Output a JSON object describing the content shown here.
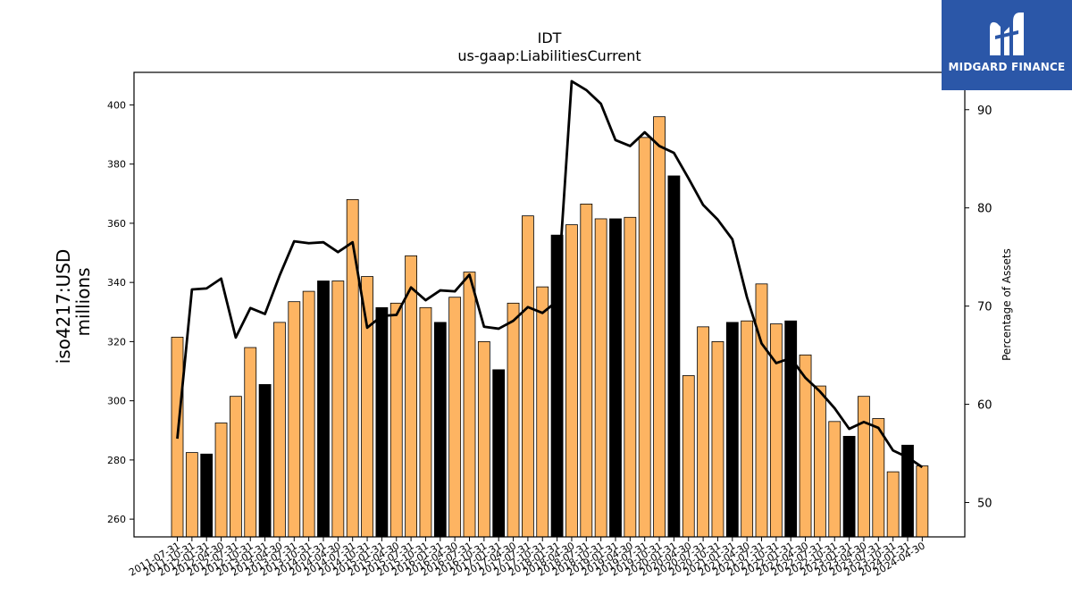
{
  "chart_data": {
    "type": "bar",
    "title": "IDT",
    "subtitle": "us-gaap:LiabilitiesCurrent",
    "ylabel_line1": "iso4217:USD",
    "ylabel_line2": "millions",
    "y2label": "Percentage of Assets",
    "ylim": [
      254,
      411
    ],
    "y2lim": [
      46.5,
      93.8
    ],
    "yticks": [
      260,
      280,
      300,
      320,
      340,
      360,
      380,
      400
    ],
    "y2ticks": [
      50,
      60,
      70,
      80,
      90
    ],
    "colors": {
      "bar": "#fdb462",
      "bar_highlight": "#000000",
      "line": "#000000"
    },
    "categories": [
      "2011-07-31",
      "2011-10-31",
      "2012-01-31",
      "2012-04-30",
      "2012-07-31",
      "2012-10-31",
      "2013-01-31",
      "2013-04-30",
      "2013-07-31",
      "2013-10-31",
      "2014-01-31",
      "2014-04-30",
      "2014-07-31",
      "2014-10-31",
      "2015-01-31",
      "2015-04-30",
      "2015-07-31",
      "2015-10-31",
      "2016-01-31",
      "2016-04-30",
      "2016-07-31",
      "2016-10-31",
      "2017-01-31",
      "2017-04-30",
      "2017-07-31",
      "2017-10-31",
      "2018-01-31",
      "2018-04-30",
      "2018-07-31",
      "2018-10-31",
      "2019-01-31",
      "2019-04-30",
      "2019-07-31",
      "2019-10-31",
      "2020-01-31",
      "2020-04-30",
      "2020-07-31",
      "2020-10-31",
      "2021-01-31",
      "2021-04-30",
      "2021-07-31",
      "2021-10-31",
      "2022-01-31",
      "2022-04-30",
      "2022-07-31",
      "2022-10-31",
      "2023-01-31",
      "2023-04-30",
      "2023-07-31",
      "2023-10-31",
      "2024-01-31",
      "2024-04-30"
    ],
    "values": [
      321.5,
      282.5,
      282,
      292.5,
      301.5,
      318,
      305.5,
      326.5,
      333.5,
      337,
      340.5,
      340.5,
      368,
      342,
      331.5,
      333,
      349,
      331.5,
      326.5,
      335,
      343.5,
      320,
      310.5,
      333,
      362.5,
      338.5,
      356,
      359.5,
      366.5,
      361.5,
      361.5,
      362,
      389,
      396,
      376,
      308.5,
      325,
      320,
      326.5,
      327,
      339.5,
      326,
      327,
      315.5,
      305,
      293,
      288,
      301.5,
      294,
      276,
      285,
      278
    ],
    "highlight": [
      false,
      false,
      true,
      false,
      false,
      false,
      true,
      false,
      false,
      false,
      true,
      false,
      false,
      false,
      true,
      false,
      false,
      false,
      true,
      false,
      false,
      false,
      true,
      false,
      false,
      false,
      true,
      false,
      false,
      false,
      true,
      false,
      false,
      false,
      true,
      false,
      false,
      false,
      true,
      false,
      false,
      false,
      true,
      false,
      false,
      false,
      true,
      false,
      false,
      false,
      true,
      false
    ],
    "percent_of_assets": [
      56.5,
      71.7,
      71.8,
      72.8,
      66.8,
      69.8,
      69.2,
      73.1,
      76.6,
      76.4,
      76.5,
      75.5,
      76.5,
      67.8,
      69,
      69.1,
      71.9,
      70.6,
      71.6,
      71.5,
      73.2,
      67.9,
      67.7,
      68.5,
      69.9,
      69.3,
      70.5,
      92.9,
      92,
      90.6,
      86.9,
      86.3,
      87.7,
      86.3,
      85.6,
      83,
      80.3,
      78.8,
      76.8,
      70.9,
      66.2,
      64.2,
      64.7,
      62.7,
      61.3,
      59.6,
      57.5,
      58.2,
      57.6,
      55.3,
      54.6,
      53.6
    ]
  },
  "branding": {
    "name": "MIDGARD FINANCE"
  }
}
